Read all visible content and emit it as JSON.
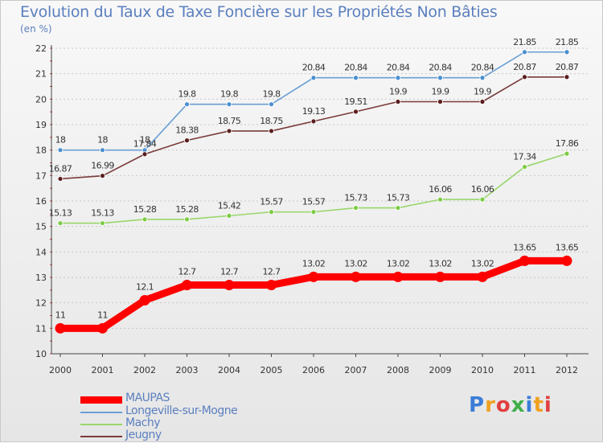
{
  "title": "Evolution du Taux de Taxe Foncière sur les Propriétés Non Bâties",
  "unit_label": "(en %)",
  "logo": {
    "text": "Proxiti",
    "colors": [
      "#3b7dd8",
      "#f0a020",
      "#e04040",
      "#3fae49",
      "#3b7dd8",
      "#f0a020",
      "#e04040"
    ]
  },
  "chart_data": {
    "type": "line",
    "title": "Evolution du Taux de Taxe Foncière sur les Propriétés Non Bâties",
    "ylabel": "(en %)",
    "xlabel": "",
    "ylim": [
      10,
      22
    ],
    "yticks": [
      "10",
      "11",
      "12",
      "13",
      "14",
      "15",
      "16",
      "17",
      "18",
      "19",
      "20",
      "21",
      "22"
    ],
    "grid": "horizontal dashed",
    "legend_position": "bottom-left",
    "x": [
      "2000",
      "2001",
      "2002",
      "2003",
      "2004",
      "2005",
      "2006",
      "2007",
      "2008",
      "2009",
      "2010",
      "2011",
      "2012"
    ],
    "series": [
      {
        "name": "MAUPAS",
        "color": "#ff0000",
        "marker": "#ff0000",
        "values": [
          11,
          11,
          12.1,
          12.7,
          12.7,
          12.7,
          13.02,
          13.02,
          13.02,
          13.02,
          13.02,
          13.65,
          13.65
        ],
        "labels": [
          "11",
          "11",
          "12.1",
          "12.7",
          "12.7",
          "12.7",
          "13.02",
          "13.02",
          "13.02",
          "13.02",
          "13.02",
          "13.65",
          "13.65"
        ]
      },
      {
        "name": "Longeville-sur-Mogne",
        "color": "#6b9fd4",
        "marker": "#4a8fd0",
        "values": [
          18,
          18,
          18,
          19.8,
          19.8,
          19.8,
          20.84,
          20.84,
          20.84,
          20.84,
          20.84,
          21.85,
          21.85
        ],
        "labels": [
          "18",
          "18",
          "18",
          "19.8",
          "19.8",
          "19.8",
          "20.84",
          "20.84",
          "20.84",
          "20.84",
          "20.84",
          "21.85",
          "21.85"
        ]
      },
      {
        "name": "Machy",
        "color": "#99d66b",
        "marker": "#7ccc44",
        "values": [
          15.13,
          15.13,
          15.28,
          15.28,
          15.42,
          15.57,
          15.57,
          15.73,
          15.73,
          16.06,
          16.06,
          17.34,
          17.86
        ],
        "labels": [
          "15.13",
          "15.13",
          "15.28",
          "15.28",
          "15.42",
          "15.57",
          "15.57",
          "15.73",
          "15.73",
          "16.06",
          "16.06",
          "17.34",
          "17.86"
        ]
      },
      {
        "name": "Jeugny",
        "color": "#7a3b3b",
        "marker": "#5a1e1e",
        "values": [
          16.87,
          16.99,
          17.84,
          18.38,
          18.75,
          18.75,
          19.13,
          19.51,
          19.9,
          19.9,
          19.9,
          20.87,
          20.87
        ],
        "labels": [
          "16.87",
          "16.99",
          "17.84",
          "18.38",
          "18.75",
          "18.75",
          "19.13",
          "19.51",
          "19.9",
          "19.9",
          "19.9",
          "20.87",
          "20.87"
        ]
      }
    ]
  }
}
